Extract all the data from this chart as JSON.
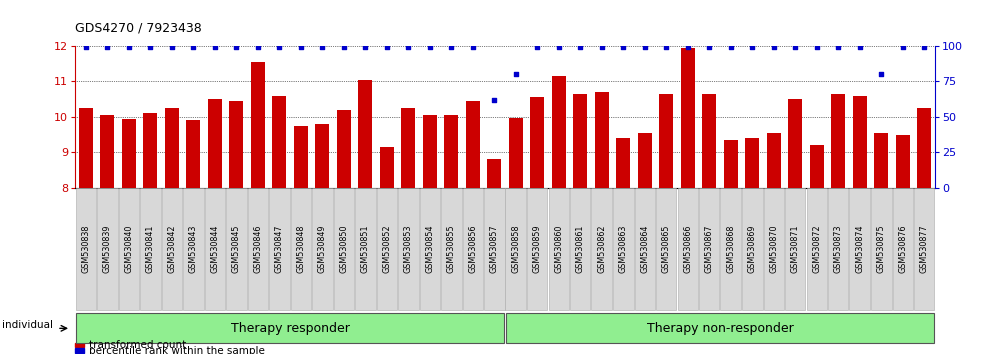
{
  "title": "GDS4270 / 7923438",
  "samples": [
    "GSM530838",
    "GSM530839",
    "GSM530840",
    "GSM530841",
    "GSM530842",
    "GSM530843",
    "GSM530844",
    "GSM530845",
    "GSM530846",
    "GSM530847",
    "GSM530848",
    "GSM530849",
    "GSM530850",
    "GSM530851",
    "GSM530852",
    "GSM530853",
    "GSM530854",
    "GSM530855",
    "GSM530856",
    "GSM530857",
    "GSM530858",
    "GSM530859",
    "GSM530860",
    "GSM530861",
    "GSM530862",
    "GSM530863",
    "GSM530864",
    "GSM530865",
    "GSM530866",
    "GSM530867",
    "GSM530868",
    "GSM530869",
    "GSM530870",
    "GSM530871",
    "GSM530872",
    "GSM530873",
    "GSM530874",
    "GSM530875",
    "GSM530876",
    "GSM530877"
  ],
  "bar_values": [
    10.25,
    10.05,
    9.95,
    10.1,
    10.25,
    9.9,
    10.5,
    10.45,
    11.55,
    10.6,
    9.75,
    9.8,
    10.2,
    11.05,
    9.15,
    10.25,
    10.05,
    10.05,
    10.45,
    8.8,
    9.98,
    10.55,
    11.15,
    10.65,
    10.7,
    9.4,
    9.55,
    10.65,
    11.95,
    10.65,
    9.35,
    9.4,
    9.55,
    10.5,
    9.2,
    10.65,
    10.6,
    9.55,
    9.5,
    10.25
  ],
  "percentile_values": [
    99,
    99,
    99,
    99,
    99,
    99,
    99,
    99,
    99,
    99,
    99,
    99,
    99,
    99,
    99,
    99,
    99,
    99,
    99,
    62,
    80,
    99,
    99,
    99,
    99,
    99,
    99,
    99,
    99,
    99,
    99,
    99,
    99,
    99,
    99,
    99,
    99,
    80,
    99,
    99
  ],
  "group_split": 20,
  "group_labels": [
    "Therapy responder",
    "Therapy non-responder"
  ],
  "bar_color": "#cc0000",
  "dot_color": "#0000cc",
  "ylim_left": [
    8,
    12
  ],
  "ylim_right": [
    0,
    100
  ],
  "yticks_left": [
    8,
    9,
    10,
    11,
    12
  ],
  "yticks_right": [
    0,
    25,
    50,
    75,
    100
  ],
  "left_yaxis_color": "#cc0000",
  "right_yaxis_color": "#0000cc",
  "legend_bar_label": "transformed count",
  "legend_dot_label": "percentile rank within the sample",
  "individual_label": "individual",
  "group_bg_color": "#90EE90",
  "tick_box_color": "#d8d8d8",
  "tick_box_edge_color": "#aaaaaa"
}
